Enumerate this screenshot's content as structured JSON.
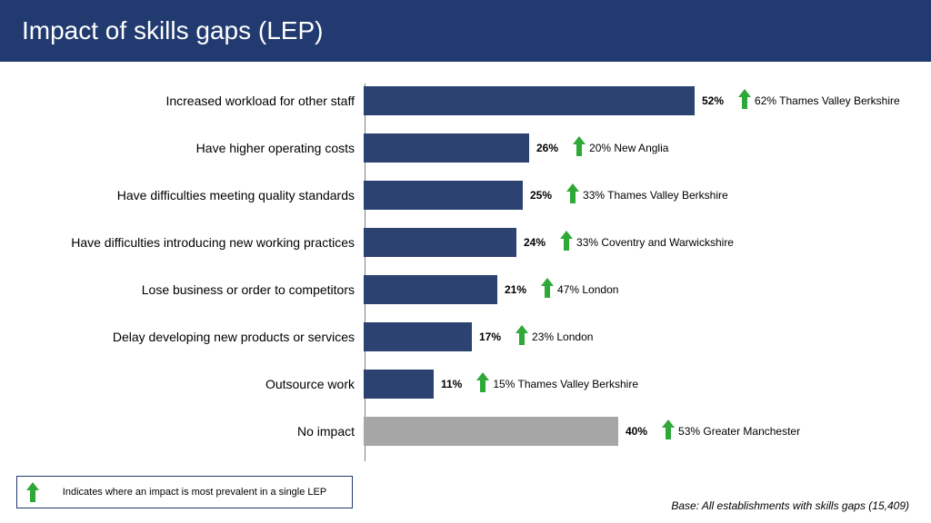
{
  "title": "Impact of skills gaps (LEP)",
  "header_bg": "#213a70",
  "header_fg": "#ffffff",
  "legend": {
    "text": "Indicates where an impact is most prevalent in a single LEP",
    "arrow_color": "#2ea836"
  },
  "base_note": "Base: All establishments with skills gaps (15,409)",
  "chart": {
    "type": "bar",
    "max_value": 60,
    "bar_color": "#2c4270",
    "alt_bar_color": "#a6a6a6",
    "arrow_color": "#2ea836",
    "value_suffix": "%",
    "rows": [
      {
        "label": "Increased workload for other staff",
        "value": 52,
        "color": "#2c4270",
        "annot": "62% Thames Valley Berkshire"
      },
      {
        "label": "Have higher operating costs",
        "value": 26,
        "color": "#2c4270",
        "annot": "20% New Anglia"
      },
      {
        "label": "Have difficulties meeting quality standards",
        "value": 25,
        "color": "#2c4270",
        "annot": "33% Thames Valley Berkshire"
      },
      {
        "label": "Have difficulties introducing new working practices",
        "value": 24,
        "color": "#2c4270",
        "annot": "33% Coventry and Warwickshire"
      },
      {
        "label": "Lose business or order to competitors",
        "value": 21,
        "color": "#2c4270",
        "annot": "47% London"
      },
      {
        "label": "Delay developing new products or services",
        "value": 17,
        "color": "#2c4270",
        "annot": "23% London"
      },
      {
        "label": "Outsource work",
        "value": 11,
        "color": "#2c4270",
        "annot": "15% Thames Valley Berkshire"
      },
      {
        "label": "No impact",
        "value": 40,
        "color": "#a6a6a6",
        "annot": "53% Greater Manchester"
      }
    ]
  }
}
